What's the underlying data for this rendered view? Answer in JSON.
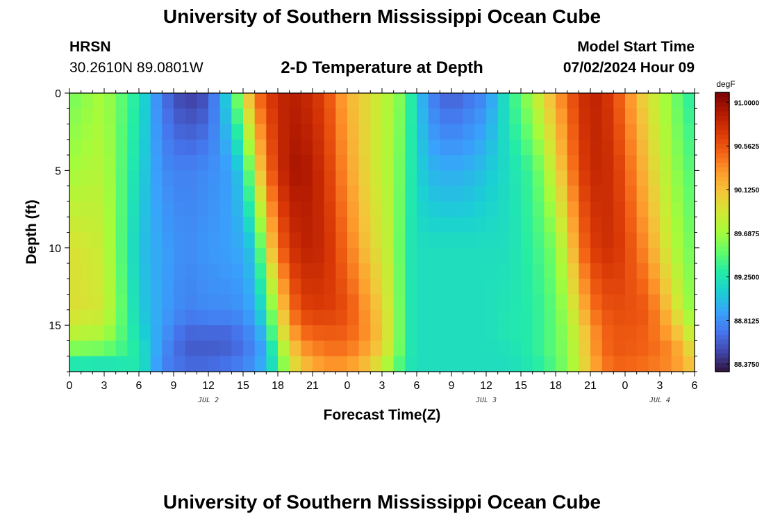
{
  "header": {
    "title": "University of Southern Mississippi Ocean Cube",
    "station": "HRSN",
    "coords": "30.2610N  89.0801W",
    "chart_title": "2-D Temperature at Depth",
    "model_label": "Model Start Time",
    "model_time": "07/02/2024 Hour 09"
  },
  "footer": {
    "title": "University of Southern Mississippi Ocean Cube"
  },
  "chart_data": {
    "type": "heatmap",
    "title": "2-D Temperature at Depth",
    "xlabel": "Forecast Time(Z)",
    "ylabel": "Depth (ft)",
    "x_tick_labels": [
      "0",
      "3",
      "6",
      "9",
      "12",
      "15",
      "18",
      "21",
      "0",
      "3",
      "6",
      "9",
      "12",
      "15",
      "18",
      "21",
      "0",
      "3",
      "6"
    ],
    "x_range_hours": [
      0,
      54
    ],
    "date_labels": [
      {
        "text": "JUL 2",
        "hour": 12
      },
      {
        "text": "JUL 3",
        "hour": 36
      },
      {
        "text": "JUL 4",
        "hour": 51
      }
    ],
    "y_ticks": [
      0,
      5,
      10,
      15
    ],
    "y_range": [
      0,
      18
    ],
    "colorbar": {
      "unit": "degF",
      "tick_values": [
        91.0,
        90.5625,
        90.125,
        89.6875,
        89.25,
        88.8125,
        88.375
      ],
      "tick_labels": [
        "91.0000",
        "90.5625",
        "90.1250",
        "89.6875",
        "89.2500",
        "88.8125",
        "88.3750"
      ],
      "range": [
        88.3,
        91.1
      ],
      "colors": [
        "#30123b",
        "#4145ab",
        "#4675ed",
        "#39a2fc",
        "#1bcfd4",
        "#24eca6",
        "#61fc6c",
        "#a4fc3b",
        "#d1e834",
        "#f3c63a",
        "#fe9b2d",
        "#f36315",
        "#d93806",
        "#b11901",
        "#7a0403"
      ]
    },
    "time_keyframes_hours": [
      0,
      3,
      6,
      8,
      10,
      12,
      14,
      15,
      16,
      17,
      18,
      19,
      20,
      22,
      24,
      26,
      28,
      29,
      30,
      31,
      32,
      33,
      34,
      36,
      38,
      40,
      41,
      42,
      43,
      44,
      45,
      46,
      47,
      48,
      50,
      52,
      54
    ],
    "depth_keyframes_ft": [
      0,
      5,
      10,
      14,
      16,
      17,
      18
    ],
    "temperature_degF": [
      [
        89.55,
        89.7,
        89.95,
        89.97,
        89.75,
        89.45,
        89.1
      ],
      [
        89.72,
        89.78,
        89.85,
        89.9,
        89.7,
        89.4,
        89.1
      ],
      [
        89.25,
        89.15,
        89.05,
        89.1,
        89.2,
        89.3,
        89.25
      ],
      [
        88.7,
        88.8,
        88.9,
        88.9,
        88.85,
        88.8,
        88.75
      ],
      [
        88.45,
        88.75,
        88.8,
        88.75,
        88.6,
        88.6,
        88.7
      ],
      [
        88.55,
        88.8,
        88.85,
        88.8,
        88.6,
        88.6,
        88.7
      ],
      [
        89.25,
        88.9,
        88.9,
        88.8,
        88.6,
        88.65,
        88.75
      ],
      [
        89.9,
        89.15,
        88.95,
        88.85,
        88.7,
        88.7,
        88.8
      ],
      [
        90.4,
        89.85,
        89.1,
        88.95,
        88.8,
        88.8,
        88.9
      ],
      [
        90.65,
        90.4,
        89.85,
        89.3,
        89.0,
        88.95,
        89.05
      ],
      [
        90.8,
        90.75,
        90.45,
        89.9,
        89.7,
        89.4,
        89.4
      ],
      [
        90.85,
        90.9,
        90.7,
        90.4,
        90.1,
        89.9,
        89.85
      ],
      [
        90.85,
        90.95,
        90.85,
        90.65,
        90.4,
        90.2,
        90.05
      ],
      [
        90.65,
        90.75,
        90.8,
        90.7,
        90.5,
        90.4,
        90.25
      ],
      [
        90.2,
        90.3,
        90.45,
        90.6,
        90.5,
        90.4,
        90.25
      ],
      [
        89.95,
        89.95,
        90.05,
        90.25,
        90.3,
        90.15,
        90.05
      ],
      [
        89.7,
        89.7,
        89.75,
        89.8,
        89.8,
        89.75,
        89.5
      ],
      [
        89.5,
        89.4,
        89.3,
        89.3,
        89.3,
        89.3,
        89.25
      ],
      [
        89.1,
        89.15,
        89.2,
        89.2,
        89.2,
        89.2,
        89.2
      ],
      [
        88.8,
        89.0,
        89.2,
        89.2,
        89.2,
        89.2,
        89.2
      ],
      [
        88.65,
        88.95,
        89.2,
        89.2,
        89.2,
        89.2,
        89.2
      ],
      [
        88.6,
        88.95,
        89.2,
        89.2,
        89.2,
        89.2,
        89.2
      ],
      [
        88.65,
        88.95,
        89.2,
        89.2,
        89.2,
        89.2,
        89.2
      ],
      [
        88.8,
        89.05,
        89.2,
        89.2,
        89.2,
        89.2,
        89.2
      ],
      [
        89.3,
        89.2,
        89.2,
        89.25,
        89.25,
        89.2,
        89.2
      ],
      [
        89.75,
        89.4,
        89.35,
        89.3,
        89.3,
        89.3,
        89.25
      ],
      [
        90.0,
        89.65,
        89.45,
        89.4,
        89.4,
        89.4,
        89.3
      ],
      [
        90.25,
        89.95,
        89.6,
        89.5,
        89.5,
        89.5,
        89.45
      ],
      [
        90.5,
        90.3,
        89.95,
        89.75,
        89.65,
        89.65,
        89.6
      ],
      [
        90.7,
        90.6,
        90.4,
        90.05,
        89.9,
        89.9,
        89.85
      ],
      [
        90.85,
        90.8,
        90.65,
        90.4,
        90.2,
        90.25,
        90.1
      ],
      [
        90.8,
        90.8,
        90.75,
        90.55,
        90.45,
        90.45,
        90.35
      ],
      [
        90.65,
        90.75,
        90.75,
        90.6,
        90.55,
        90.55,
        90.45
      ],
      [
        90.4,
        90.55,
        90.65,
        90.6,
        90.55,
        90.55,
        90.45
      ],
      [
        89.95,
        90.1,
        90.3,
        90.55,
        90.5,
        90.5,
        90.4
      ],
      [
        89.6,
        89.7,
        89.8,
        90.05,
        90.3,
        90.4,
        90.3
      ],
      [
        89.25,
        89.4,
        89.5,
        89.55,
        89.8,
        90.0,
        90.1
      ]
    ]
  }
}
